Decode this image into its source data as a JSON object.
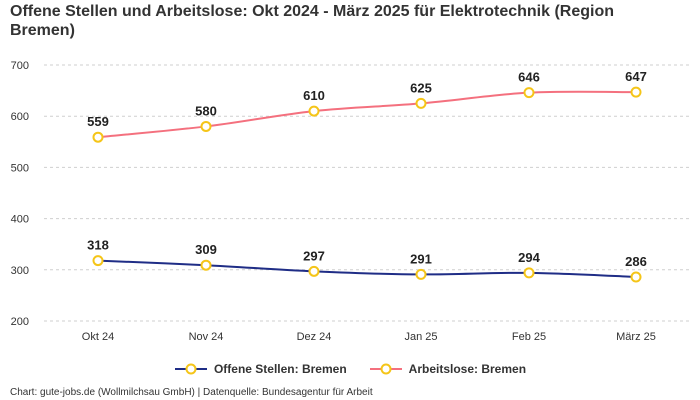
{
  "chart_data": {
    "type": "line",
    "title": "Offene Stellen und Arbeitslose: Okt 2024 - März 2025 für Elektrotechnik (Region Bremen)",
    "categories": [
      "Okt 24",
      "Nov 24",
      "Dez 24",
      "Jan 25",
      "Feb 25",
      "März 25"
    ],
    "yticks": [
      200,
      300,
      400,
      500,
      600,
      700
    ],
    "ylim": [
      200,
      700
    ],
    "xlabel": "",
    "ylabel": "",
    "grid": true,
    "legend_position": "bottom",
    "series": [
      {
        "name": "Offene Stellen: Bremen",
        "color": "#1f2d86",
        "values": [
          318,
          309,
          297,
          291,
          294,
          286
        ]
      },
      {
        "name": "Arbeitslose: Bremen",
        "color": "#f4707e",
        "values": [
          559,
          580,
          610,
          625,
          646,
          647
        ]
      }
    ],
    "marker_color": "#f5c518"
  },
  "footer": {
    "source": "Chart: gute-jobs.de (Wollmilchsau GmbH) | Datenquelle: Bundesagentur für Arbeit"
  }
}
